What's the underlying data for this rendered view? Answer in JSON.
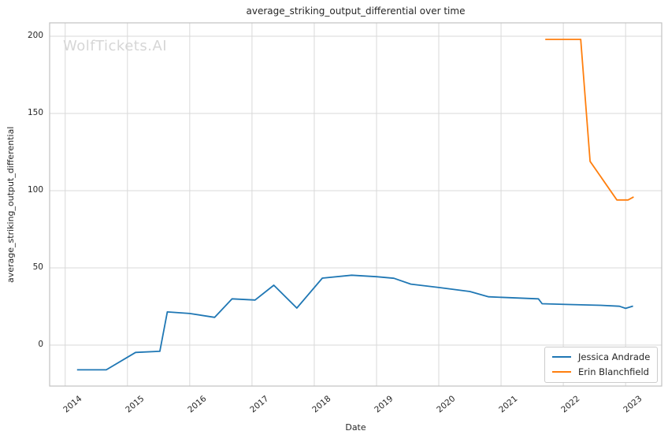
{
  "watermark": "WolfTickets.AI",
  "chart_data": {
    "type": "line",
    "title": "average_striking_output_differential over time",
    "xlabel": "Date",
    "ylabel": "average_striking_output_differential",
    "x_unit": "decimal_year",
    "xlim": [
      2013.75,
      2023.58
    ],
    "ylim": [
      -26.5,
      208.7
    ],
    "x_ticks": [
      2014,
      2015,
      2016,
      2017,
      2018,
      2019,
      2020,
      2021,
      2022,
      2023
    ],
    "x_tick_labels": [
      "2014",
      "2015",
      "2016",
      "2017",
      "2018",
      "2019",
      "2020",
      "2021",
      "2022",
      "2023"
    ],
    "y_ticks": [
      0,
      50,
      100,
      150,
      200
    ],
    "y_tick_labels": [
      "0",
      "50",
      "100",
      "150",
      "200"
    ],
    "grid": true,
    "legend_position": "lower right",
    "colors": {
      "grid": "#d9d9d9",
      "spine": "#c2c2c2",
      "text": "#262626",
      "watermark": "#d6d6d6",
      "background": "#ffffff"
    },
    "series": [
      {
        "name": "Jessica Andrade",
        "color": "#1f77b4",
        "points": [
          [
            2014.19,
            -16
          ],
          [
            2014.66,
            -16
          ],
          [
            2015.13,
            -4.7
          ],
          [
            2015.52,
            -4
          ],
          [
            2015.64,
            21.5
          ],
          [
            2016.0,
            20.5
          ],
          [
            2016.4,
            18
          ],
          [
            2016.68,
            30
          ],
          [
            2017.05,
            29.2
          ],
          [
            2017.35,
            38.8
          ],
          [
            2017.72,
            24
          ],
          [
            2018.13,
            43.4
          ],
          [
            2018.6,
            45.3
          ],
          [
            2019.0,
            44.3
          ],
          [
            2019.28,
            43.3
          ],
          [
            2019.55,
            39.5
          ],
          [
            2020.0,
            37.3
          ],
          [
            2020.5,
            34.7
          ],
          [
            2020.8,
            31.3
          ],
          [
            2021.6,
            30
          ],
          [
            2021.66,
            26.8
          ],
          [
            2022.1,
            26.3
          ],
          [
            2022.6,
            25.8
          ],
          [
            2022.9,
            25.2
          ],
          [
            2023.0,
            23.8
          ],
          [
            2023.12,
            25.3
          ]
        ]
      },
      {
        "name": "Erin Blanchfield",
        "color": "#ff7f0e",
        "points": [
          [
            2021.71,
            198
          ],
          [
            2022.28,
            198
          ],
          [
            2022.43,
            119
          ],
          [
            2022.86,
            94
          ],
          [
            2023.04,
            94
          ],
          [
            2023.13,
            96
          ]
        ]
      }
    ]
  }
}
